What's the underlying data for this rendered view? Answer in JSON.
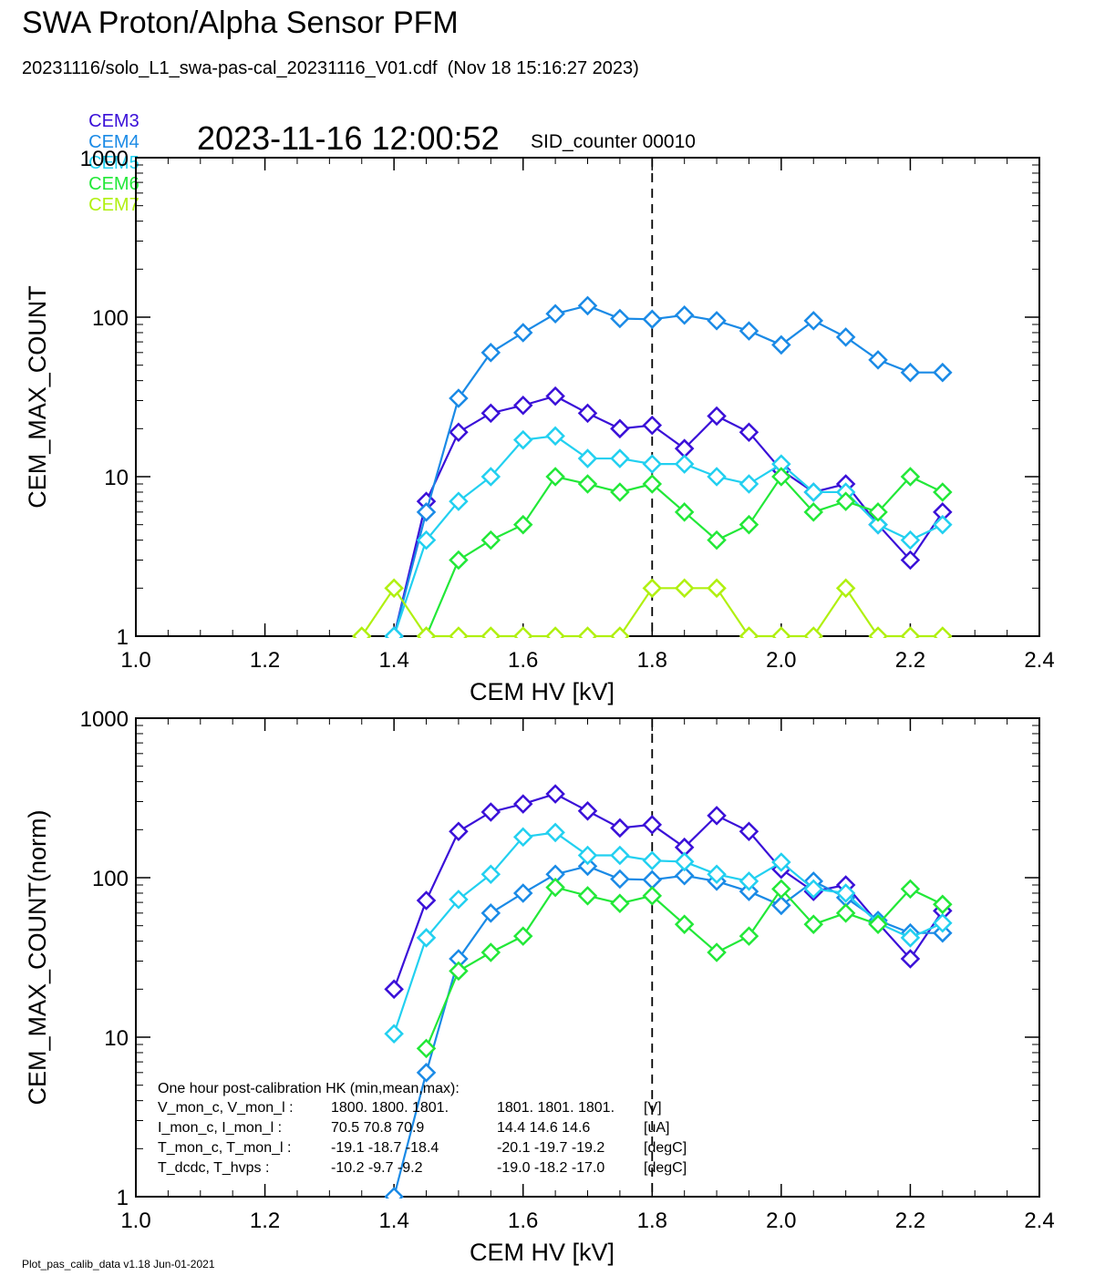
{
  "header": {
    "title": "SWA Proton/Alpha Sensor PFM",
    "subtitle": "20231116/solo_L1_swa-pas-cal_20231116_V01.cdf  (Nov 18 15:16:27 2023)",
    "timestamp": "2023-11-16 12:00:52",
    "sid_counter": "SID_counter 00010"
  },
  "legend": [
    {
      "label": "CEM3",
      "color": "#3a10d8"
    },
    {
      "label": "CEM4",
      "color": "#1a8ae6"
    },
    {
      "label": "CEM5",
      "color": "#22d0f0"
    },
    {
      "label": "CEM6",
      "color": "#22e838"
    },
    {
      "label": "CEM7",
      "color": "#b0f010"
    }
  ],
  "hk_box": {
    "title": "One hour post-calibration HK (min,mean,max):",
    "rows": [
      {
        "label": "V_mon_c, V_mon_l :",
        "vals1": "1800.  1800.  1801.",
        "vals2": "1801.  1801.  1801.",
        "unit": "[V]"
      },
      {
        "label": "I_mon_c,  I_mon_l :",
        "vals1": " 70.5   70.8   70.9",
        "vals2": "14.4   14.6   14.6",
        "unit": "[uA]"
      },
      {
        "label": "T_mon_c, T_mon_l :",
        "vals1": "-19.1  -18.7  -18.4",
        "vals2": "-20.1  -19.7  -19.2",
        "unit": "[degC]"
      },
      {
        "label": "T_dcdc,    T_hvps :",
        "vals1": "-10.2   -9.7   -9.2",
        "vals2": "-19.0  -18.2  -17.0",
        "unit": "[degC]"
      }
    ]
  },
  "footer": "Plot_pas_calib_data v1.18 Jun-01-2021",
  "chart_data": [
    {
      "type": "line",
      "xlabel": "CEM HV [kV]",
      "ylabel": "CEM_MAX_COUNT",
      "xlim": [
        1.0,
        2.4
      ],
      "ylim": [
        1,
        1000
      ],
      "yscale": "log",
      "xticks": [
        "1.0",
        "1.2",
        "1.4",
        "1.6",
        "1.8",
        "2.0",
        "2.2",
        "2.4"
      ],
      "yticks": [
        "1",
        "10",
        "100",
        "1000"
      ],
      "marker_line_x": 1.8,
      "x": [
        1.35,
        1.4,
        1.45,
        1.5,
        1.55,
        1.6,
        1.65,
        1.7,
        1.75,
        1.8,
        1.85,
        1.9,
        1.95,
        2.0,
        2.05,
        2.1,
        2.15,
        2.2,
        2.25
      ],
      "series": [
        {
          "name": "CEM3",
          "color": "#3a10d8",
          "values": [
            null,
            1,
            7,
            19,
            25,
            28,
            32,
            25,
            20,
            21,
            15,
            24,
            19,
            11,
            8,
            9,
            5,
            3,
            6
          ]
        },
        {
          "name": "CEM4",
          "color": "#1a8ae6",
          "values": [
            null,
            1,
            6,
            31,
            60,
            80,
            105,
            118,
            98,
            97,
            103,
            95,
            82,
            67,
            95,
            75,
            54,
            45,
            45
          ]
        },
        {
          "name": "CEM5",
          "color": "#22d0f0",
          "values": [
            null,
            1,
            4,
            7,
            10,
            17,
            18,
            13,
            13,
            12,
            12,
            10,
            9,
            12,
            8,
            8,
            5,
            4,
            5
          ]
        },
        {
          "name": "CEM6",
          "color": "#22e838",
          "values": [
            null,
            null,
            1,
            3,
            4,
            5,
            10,
            9,
            8,
            9,
            6,
            4,
            5,
            10,
            6,
            7,
            6,
            10,
            8
          ]
        },
        {
          "name": "CEM7",
          "color": "#b0f010",
          "values": [
            1,
            2,
            1,
            1,
            1,
            1,
            1,
            1,
            1,
            2,
            2,
            2,
            1,
            1,
            1,
            2,
            1,
            1,
            1
          ]
        }
      ]
    },
    {
      "type": "line",
      "xlabel": "CEM HV [kV]",
      "ylabel": "CEM_MAX_COUNT(norm)",
      "xlim": [
        1.0,
        2.4
      ],
      "ylim": [
        1,
        1000
      ],
      "yscale": "log",
      "xticks": [
        "1.0",
        "1.2",
        "1.4",
        "1.6",
        "1.8",
        "2.0",
        "2.2",
        "2.4"
      ],
      "yticks": [
        "1",
        "10",
        "100",
        "1000"
      ],
      "marker_line_x": 1.8,
      "x": [
        1.4,
        1.45,
        1.5,
        1.55,
        1.6,
        1.65,
        1.7,
        1.75,
        1.8,
        1.85,
        1.9,
        1.95,
        2.0,
        2.05,
        2.1,
        2.15,
        2.2,
        2.25
      ],
      "series": [
        {
          "name": "CEM3",
          "color": "#3a10d8",
          "values": [
            20,
            72,
            195,
            258,
            290,
            335,
            262,
            205,
            215,
            155,
            245,
            195,
            113,
            82,
            90,
            52,
            31,
            62
          ]
        },
        {
          "name": "CEM4",
          "color": "#1a8ae6",
          "values": [
            1,
            6,
            31,
            60,
            80,
            105,
            118,
            98,
            97,
            103,
            95,
            82,
            67,
            95,
            75,
            54,
            45,
            45
          ]
        },
        {
          "name": "CEM5",
          "color": "#22d0f0",
          "values": [
            10.5,
            42,
            73,
            105,
            180,
            192,
            138,
            138,
            128,
            126,
            105,
            95,
            125,
            85,
            80,
            52,
            42,
            52
          ]
        },
        {
          "name": "CEM6",
          "color": "#22e838",
          "values": [
            null,
            8.5,
            26,
            34,
            43,
            87,
            77,
            69,
            77,
            51,
            34,
            43,
            85,
            51,
            60,
            51,
            85,
            68
          ]
        }
      ]
    }
  ]
}
